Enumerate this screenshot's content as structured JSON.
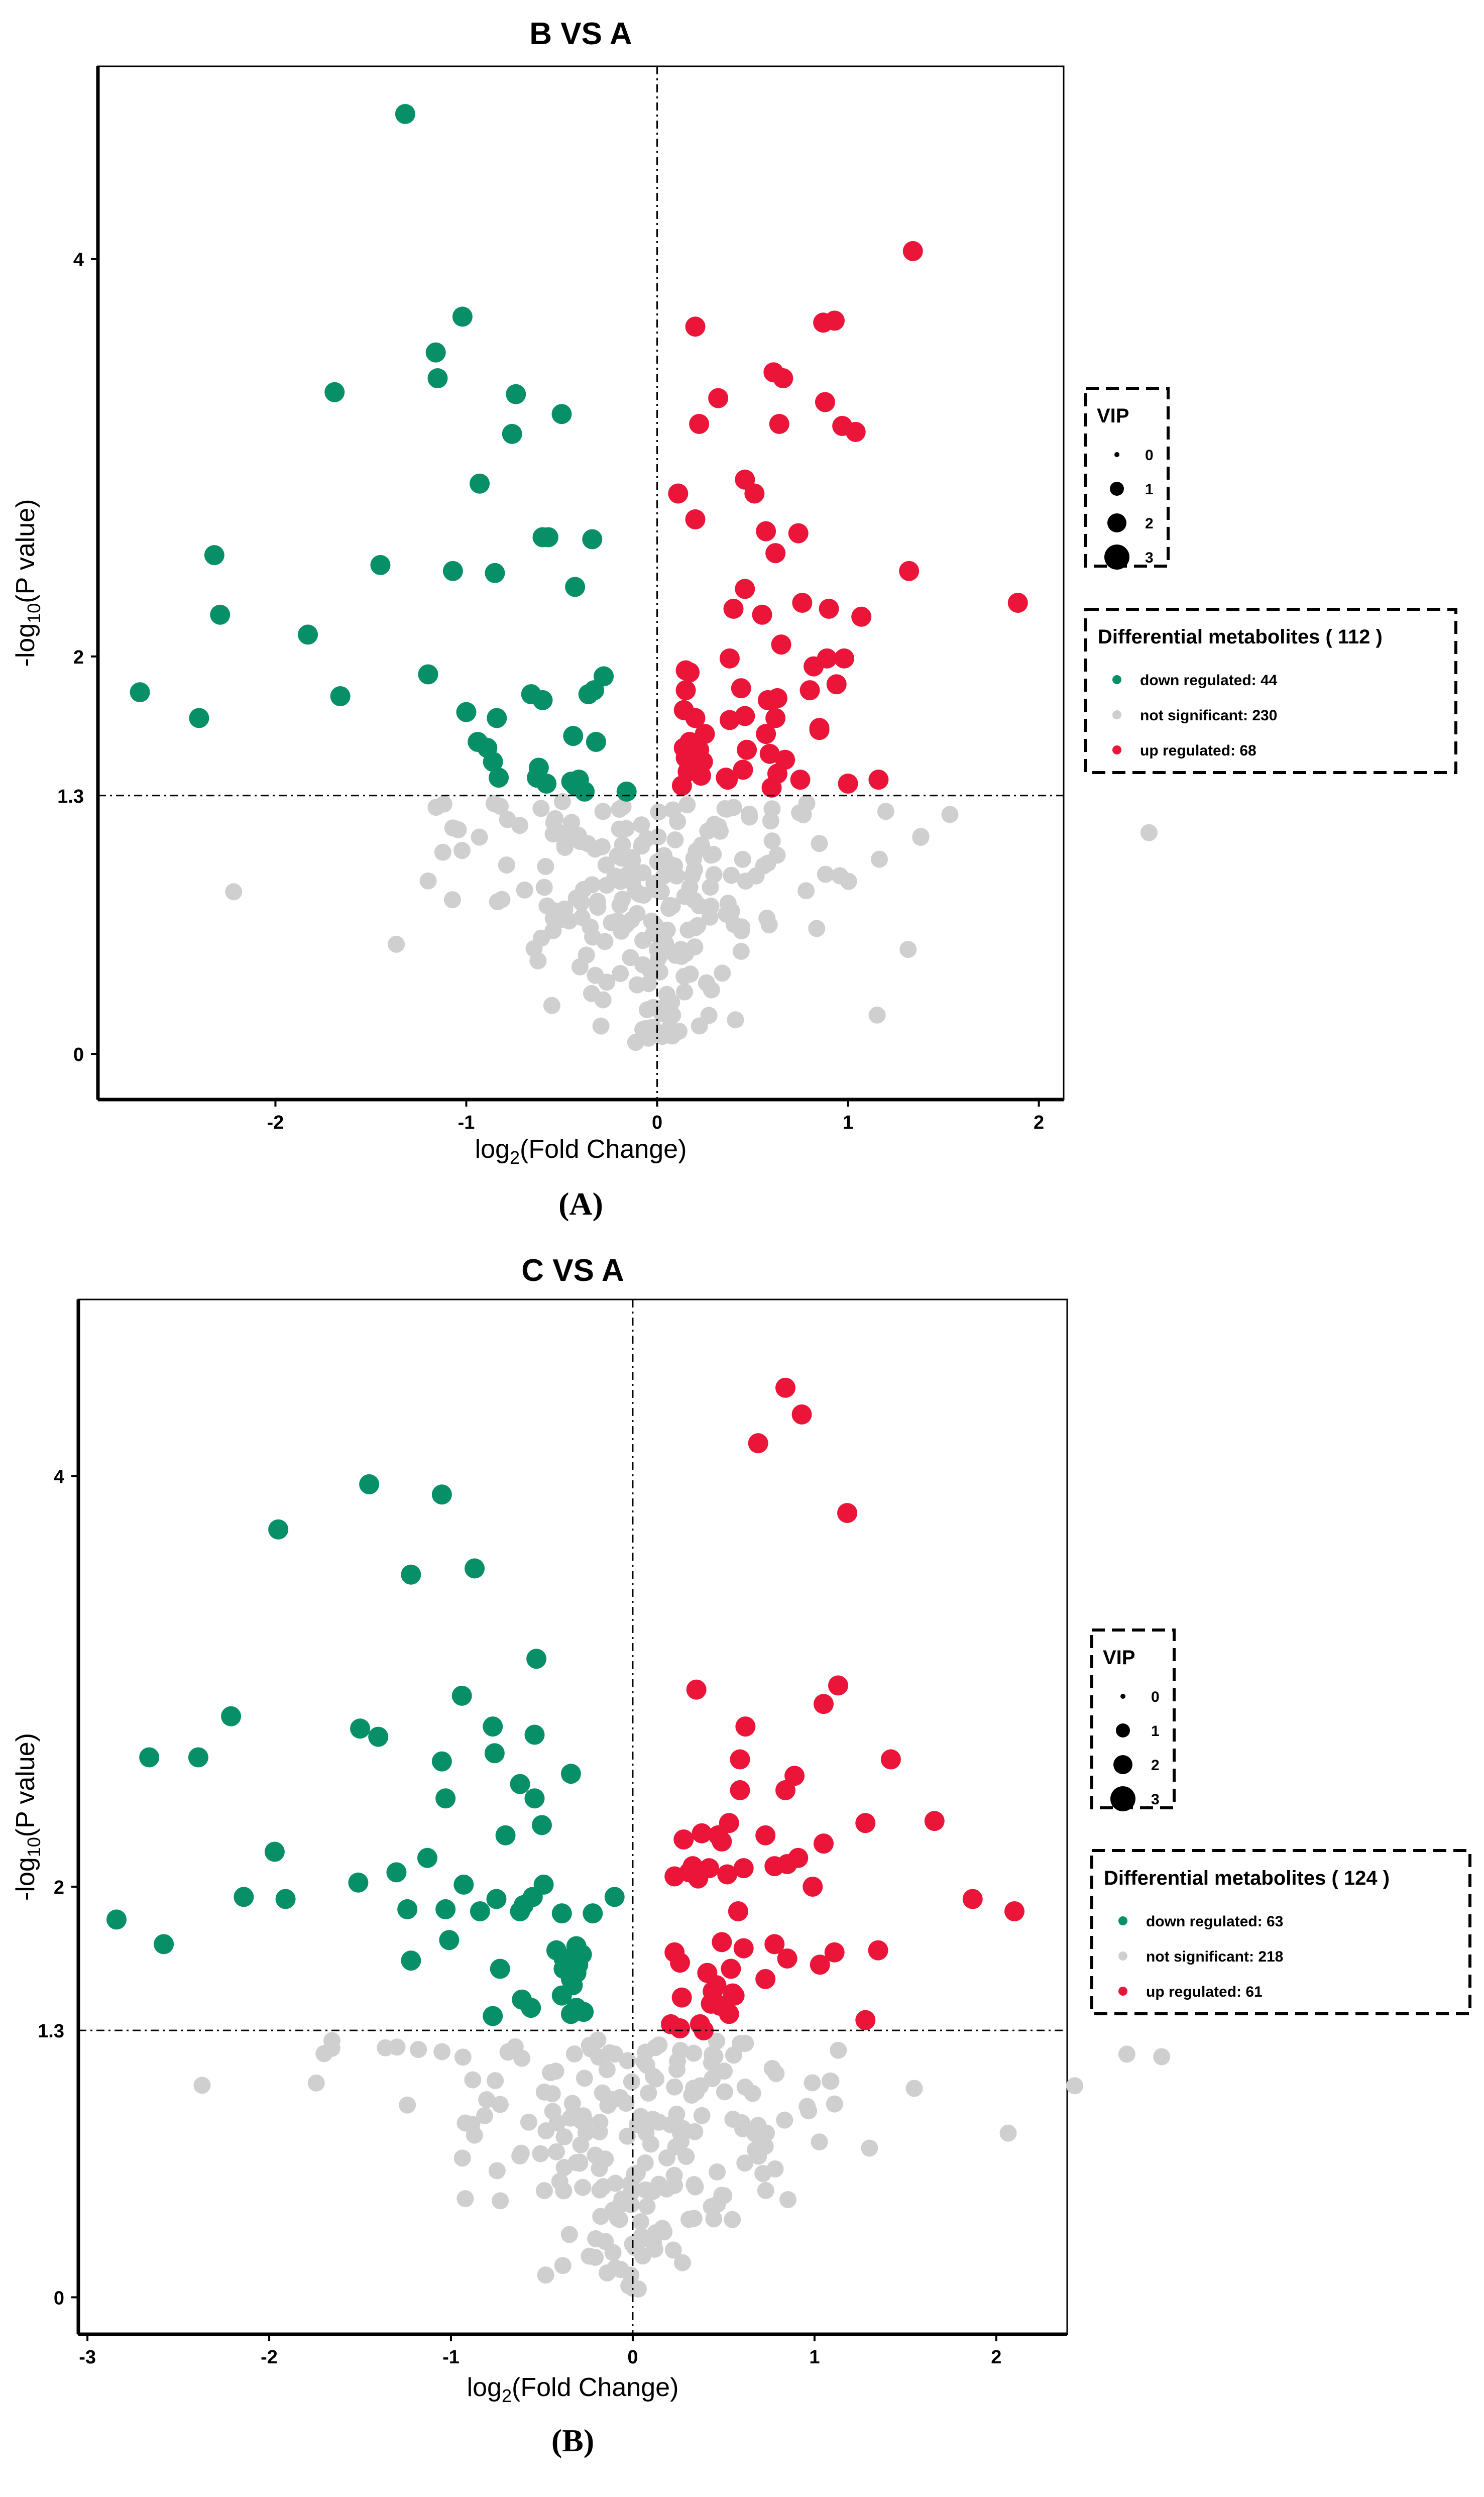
{
  "colors": {
    "down": "#079068",
    "ns": "#cfcfcf",
    "up": "#ea1538"
  },
  "vip_title": "VIP",
  "vip_levels": [
    "0",
    "1",
    "2",
    "3"
  ],
  "threshold_label": "1.3",
  "chart_data": [
    {
      "type": "scatter",
      "panel_label": "(A)",
      "panel_letter": "A",
      "title": "B VS A",
      "xlabel": "log2(Fold Change)",
      "ylabel": "-log10(P value)",
      "xlim": [
        -2.93,
        2.13
      ],
      "ylim": [
        -0.23,
        4.97
      ],
      "xticks": [
        -2,
        -1,
        0,
        1,
        2
      ],
      "yticks": [
        0,
        2,
        4
      ],
      "threshold_y": 1.3,
      "legend": {
        "title": "Differential metabolites ( 112 )",
        "items": [
          "down regulated: 44",
          "not significant: 230",
          "up regulated: 68"
        ]
      },
      "down": [
        [
          -1.32,
          4.73
        ],
        [
          -1.02,
          3.71
        ],
        [
          -1.16,
          3.53
        ],
        [
          -1.15,
          3.4
        ],
        [
          -1.69,
          3.33
        ],
        [
          -0.74,
          3.32
        ],
        [
          -0.76,
          3.12
        ],
        [
          -0.5,
          3.22
        ],
        [
          -0.93,
          2.87
        ],
        [
          -0.57,
          2.6
        ],
        [
          -0.6,
          2.6
        ],
        [
          -0.34,
          2.59
        ],
        [
          -2.32,
          2.51
        ],
        [
          -1.45,
          2.46
        ],
        [
          -1.07,
          2.43
        ],
        [
          -0.85,
          2.42
        ],
        [
          -0.43,
          2.35
        ],
        [
          -2.29,
          2.21
        ],
        [
          -1.83,
          2.11
        ],
        [
          -1.2,
          1.91
        ],
        [
          -0.28,
          1.9
        ],
        [
          -0.33,
          1.83
        ],
        [
          -0.36,
          1.81
        ],
        [
          -0.66,
          1.81
        ],
        [
          -0.6,
          1.78
        ],
        [
          -2.71,
          1.82
        ],
        [
          -1.66,
          1.8
        ],
        [
          -1.0,
          1.72
        ],
        [
          -0.84,
          1.69
        ],
        [
          -2.4,
          1.69
        ],
        [
          -0.94,
          1.57
        ],
        [
          -0.89,
          1.54
        ],
        [
          -0.44,
          1.6
        ],
        [
          -0.32,
          1.57
        ],
        [
          -0.83,
          1.39
        ],
        [
          -0.63,
          1.39
        ],
        [
          -0.62,
          1.44
        ],
        [
          -0.45,
          1.37
        ],
        [
          -0.41,
          1.38
        ],
        [
          -0.38,
          1.32
        ],
        [
          -0.58,
          1.36
        ],
        [
          -0.43,
          1.35
        ],
        [
          -0.16,
          1.32
        ],
        [
          -0.86,
          1.47
        ]
      ],
      "up": [
        [
          1.34,
          4.04
        ],
        [
          0.93,
          3.69
        ],
        [
          0.87,
          3.68
        ],
        [
          0.2,
          3.66
        ],
        [
          0.61,
          3.43
        ],
        [
          0.66,
          3.4
        ],
        [
          0.32,
          3.3
        ],
        [
          0.88,
          3.28
        ],
        [
          1.04,
          3.13
        ],
        [
          0.97,
          3.16
        ],
        [
          0.64,
          3.17
        ],
        [
          0.22,
          3.17
        ],
        [
          0.46,
          2.89
        ],
        [
          0.51,
          2.82
        ],
        [
          0.11,
          2.82
        ],
        [
          0.2,
          2.69
        ],
        [
          0.57,
          2.63
        ],
        [
          0.74,
          2.62
        ],
        [
          0.62,
          2.52
        ],
        [
          1.32,
          2.43
        ],
        [
          0.46,
          2.34
        ],
        [
          0.76,
          2.27
        ],
        [
          1.89,
          2.27
        ],
        [
          0.9,
          2.24
        ],
        [
          1.07,
          2.2
        ],
        [
          0.55,
          2.21
        ],
        [
          0.4,
          2.24
        ],
        [
          0.65,
          2.06
        ],
        [
          0.89,
          1.99
        ],
        [
          0.82,
          1.95
        ],
        [
          0.38,
          1.99
        ],
        [
          0.98,
          1.99
        ],
        [
          0.15,
          1.93
        ],
        [
          0.17,
          1.92
        ],
        [
          0.44,
          1.84
        ],
        [
          0.63,
          1.79
        ],
        [
          0.8,
          1.83
        ],
        [
          0.94,
          1.86
        ],
        [
          0.58,
          1.78
        ],
        [
          0.15,
          1.83
        ],
        [
          0.2,
          1.69
        ],
        [
          0.38,
          1.68
        ],
        [
          0.46,
          1.7
        ],
        [
          0.62,
          1.69
        ],
        [
          0.85,
          1.63
        ],
        [
          0.14,
          1.73
        ],
        [
          0.57,
          1.61
        ],
        [
          0.25,
          1.61
        ],
        [
          0.17,
          1.57
        ],
        [
          0.85,
          1.64
        ],
        [
          0.14,
          1.54
        ],
        [
          0.22,
          1.53
        ],
        [
          0.47,
          1.53
        ],
        [
          0.59,
          1.51
        ],
        [
          0.67,
          1.48
        ],
        [
          0.15,
          1.49
        ],
        [
          0.24,
          1.47
        ],
        [
          0.45,
          1.43
        ],
        [
          0.16,
          1.42
        ],
        [
          0.36,
          1.39
        ],
        [
          0.13,
          1.35
        ],
        [
          0.6,
          1.34
        ],
        [
          0.75,
          1.38
        ],
        [
          1.0,
          1.36
        ],
        [
          1.16,
          1.38
        ],
        [
          0.23,
          1.4
        ],
        [
          0.37,
          1.38
        ],
        [
          0.63,
          1.41
        ]
      ]
    },
    {
      "type": "scatter",
      "panel_label": "(B)",
      "panel_letter": "B",
      "title": "C VS A",
      "xlabel": "log2(Fold Change)",
      "ylabel": "-log10(P value)",
      "xlim": [
        -3.05,
        2.39
      ],
      "ylim": [
        -0.18,
        4.86
      ],
      "xticks": [
        -3,
        -2,
        -1,
        0,
        1,
        2
      ],
      "yticks": [
        0,
        2,
        4
      ],
      "threshold_y": 1.3,
      "legend": {
        "title": "Differential metabolites ( 124 )",
        "items": [
          "down regulated: 63",
          "not significant: 218",
          "up regulated: 61"
        ]
      },
      "down": [
        [
          -1.45,
          3.96
        ],
        [
          -1.05,
          3.91
        ],
        [
          -1.95,
          3.74
        ],
        [
          -1.22,
          3.52
        ],
        [
          -0.87,
          3.55
        ],
        [
          -0.53,
          3.11
        ],
        [
          -0.94,
          2.93
        ],
        [
          -2.21,
          2.83
        ],
        [
          -2.66,
          2.63
        ],
        [
          -2.39,
          2.63
        ],
        [
          -1.5,
          2.77
        ],
        [
          -1.4,
          2.73
        ],
        [
          -0.77,
          2.78
        ],
        [
          -0.54,
          2.74
        ],
        [
          -0.34,
          2.55
        ],
        [
          -1.05,
          2.61
        ],
        [
          -0.76,
          2.65
        ],
        [
          -0.54,
          2.43
        ],
        [
          -0.62,
          2.5
        ],
        [
          -1.03,
          2.43
        ],
        [
          -0.5,
          2.3
        ],
        [
          -0.7,
          2.25
        ],
        [
          -1.97,
          2.17
        ],
        [
          -1.13,
          2.14
        ],
        [
          -1.3,
          2.07
        ],
        [
          -0.93,
          2.01
        ],
        [
          -1.51,
          2.02
        ],
        [
          -0.49,
          2.01
        ],
        [
          -2.14,
          1.95
        ],
        [
          -1.91,
          1.94
        ],
        [
          -0.55,
          1.95
        ],
        [
          -0.6,
          1.91
        ],
        [
          -0.1,
          1.95
        ],
        [
          -0.75,
          1.94
        ],
        [
          -0.22,
          1.87
        ],
        [
          -0.62,
          1.88
        ],
        [
          -0.84,
          1.88
        ],
        [
          -1.03,
          1.89
        ],
        [
          -0.39,
          1.87
        ],
        [
          -1.24,
          1.89
        ],
        [
          -2.84,
          1.84
        ],
        [
          -2.58,
          1.72
        ],
        [
          -1.01,
          1.74
        ],
        [
          -0.42,
          1.69
        ],
        [
          -0.31,
          1.71
        ],
        [
          -0.38,
          1.65
        ],
        [
          -0.36,
          1.64
        ],
        [
          -0.28,
          1.67
        ],
        [
          -0.3,
          1.62
        ],
        [
          -0.34,
          1.6
        ],
        [
          -0.38,
          1.6
        ],
        [
          -0.31,
          1.58
        ],
        [
          -1.22,
          1.64
        ],
        [
          -0.73,
          1.6
        ],
        [
          -0.34,
          1.55
        ],
        [
          -0.33,
          1.52
        ],
        [
          -0.39,
          1.47
        ],
        [
          -0.61,
          1.45
        ],
        [
          -0.56,
          1.41
        ],
        [
          -0.27,
          1.39
        ],
        [
          -0.77,
          1.37
        ],
        [
          -0.31,
          1.41
        ],
        [
          -0.34,
          1.38
        ]
      ],
      "up": [
        [
          0.84,
          4.43
        ],
        [
          0.93,
          4.3
        ],
        [
          0.69,
          4.16
        ],
        [
          1.18,
          3.82
        ],
        [
          1.13,
          2.98
        ],
        [
          0.35,
          2.96
        ],
        [
          1.05,
          2.89
        ],
        [
          0.62,
          2.78
        ],
        [
          1.42,
          2.62
        ],
        [
          0.59,
          2.62
        ],
        [
          0.89,
          2.54
        ],
        [
          0.59,
          2.47
        ],
        [
          0.84,
          2.47
        ],
        [
          1.66,
          2.32
        ],
        [
          0.53,
          2.31
        ],
        [
          1.28,
          2.31
        ],
        [
          0.47,
          2.25
        ],
        [
          1.05,
          2.21
        ],
        [
          0.73,
          2.25
        ],
        [
          0.38,
          2.26
        ],
        [
          0.28,
          2.23
        ],
        [
          0.49,
          2.22
        ],
        [
          0.91,
          2.14
        ],
        [
          0.33,
          2.1
        ],
        [
          0.42,
          2.09
        ],
        [
          0.61,
          2.09
        ],
        [
          0.52,
          2.06
        ],
        [
          0.31,
          2.07
        ],
        [
          0.78,
          2.1
        ],
        [
          0.85,
          2.11
        ],
        [
          0.23,
          2.05
        ],
        [
          0.36,
          2.04
        ],
        [
          0.99,
          2.0
        ],
        [
          0.58,
          1.88
        ],
        [
          1.87,
          1.94
        ],
        [
          2.1,
          1.88
        ],
        [
          0.61,
          1.7
        ],
        [
          0.49,
          1.73
        ],
        [
          0.78,
          1.72
        ],
        [
          0.23,
          1.68
        ],
        [
          1.11,
          1.68
        ],
        [
          1.35,
          1.69
        ],
        [
          0.85,
          1.65
        ],
        [
          0.26,
          1.63
        ],
        [
          0.41,
          1.58
        ],
        [
          0.73,
          1.55
        ],
        [
          1.03,
          1.62
        ],
        [
          0.54,
          1.6
        ],
        [
          0.46,
          1.52
        ],
        [
          0.44,
          1.49
        ],
        [
          0.55,
          1.48
        ],
        [
          0.27,
          1.46
        ],
        [
          0.21,
          1.33
        ],
        [
          0.26,
          1.31
        ],
        [
          0.37,
          1.33
        ],
        [
          0.53,
          1.38
        ],
        [
          0.43,
          1.43
        ],
        [
          1.28,
          1.35
        ],
        [
          0.48,
          1.42
        ],
        [
          0.56,
          1.47
        ],
        [
          0.39,
          1.3
        ]
      ]
    }
  ]
}
